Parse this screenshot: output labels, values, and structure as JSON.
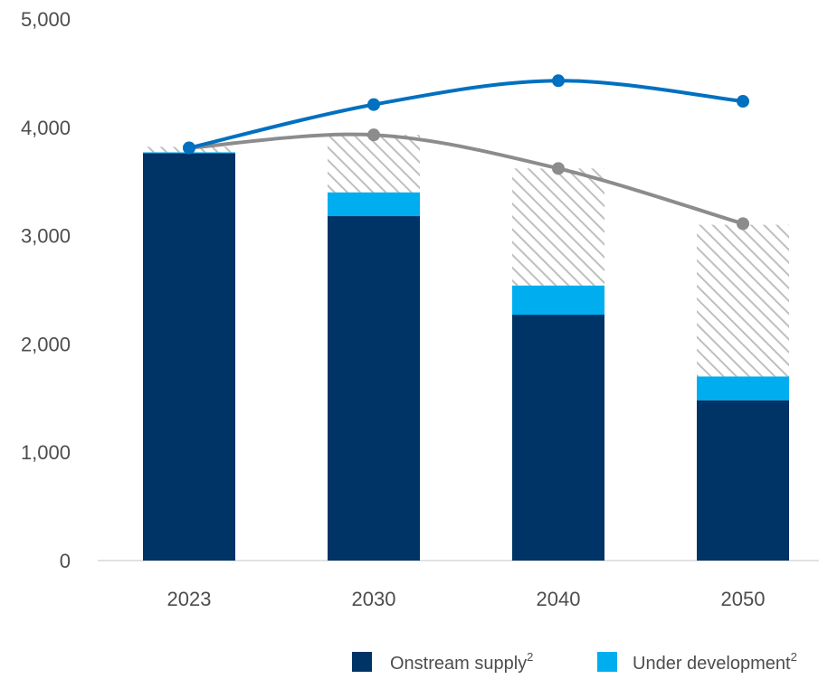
{
  "chart_data": {
    "type": "bar",
    "stacked": true,
    "categories": [
      "2023",
      "2030",
      "2040",
      "2050"
    ],
    "ylim": [
      0,
      5000
    ],
    "yticks": [
      "0",
      "1,000",
      "2,000",
      "3,000",
      "4,000",
      "5,000"
    ],
    "ytick_values": [
      0,
      1000,
      2000,
      3000,
      4000,
      5000
    ],
    "grid": false,
    "legend_placement": "bottom-right",
    "series": [
      {
        "name": "Onstream supply",
        "superscript": "2",
        "color": "#003366",
        "values": [
          3760,
          3180,
          2270,
          1480
        ]
      },
      {
        "name": "Under development",
        "superscript": "2",
        "color": "#00aeef",
        "values": [
          10,
          220,
          270,
          220
        ]
      },
      {
        "type": "bar-hatched",
        "color": "#bfbfbf",
        "values": [
          50,
          530,
          1080,
          1400
        ]
      },
      {
        "type": "line",
        "color": "#0070c0",
        "values": [
          3810,
          4210,
          4430,
          4240
        ]
      },
      {
        "type": "line",
        "color": "#8c8c8c",
        "values": [
          3810,
          3930,
          3620,
          3110
        ]
      }
    ]
  }
}
